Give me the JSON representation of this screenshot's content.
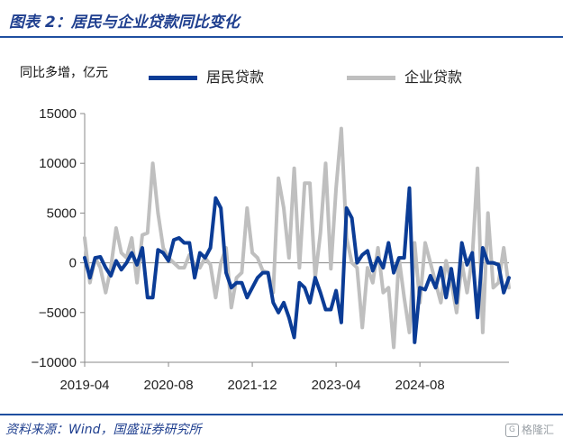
{
  "header": {
    "title": "图表 2：居民与企业贷款同比变化"
  },
  "footer": {
    "source": "资料来源：Wind，国盛证券研究所",
    "watermark": "格隆汇",
    "watermark_icon": "gelonghui-logo-icon"
  },
  "colors": {
    "household": "#0b3c96",
    "corporate": "#bfbfbf",
    "accent": "#1f3f8f"
  },
  "chart_data": {
    "type": "line",
    "ylabel": "同比多增，亿元",
    "ylim": [
      -10000,
      15000
    ],
    "yticks": [
      15000,
      10000,
      5000,
      0,
      -5000,
      -10000
    ],
    "ytick_labels": [
      "15000",
      "10000",
      "5000",
      "0",
      "−5000",
      "−10000"
    ],
    "xtick_labels": [
      "2019-04",
      "2020-08",
      "2021-12",
      "2023-04",
      "2024-08"
    ],
    "xtick_index": [
      0,
      16,
      32,
      48,
      64
    ],
    "grid": false,
    "legend": "top",
    "series": [
      {
        "name": "居民贷款",
        "color": "#0b3c96",
        "values": [
          500,
          -1500,
          500,
          600,
          -500,
          -1300,
          200,
          -700,
          0,
          1000,
          -200,
          1500,
          -3500,
          -3500,
          1300,
          1000,
          200,
          2300,
          2500,
          2000,
          2000,
          -1500,
          1000,
          500,
          1500,
          6500,
          5500,
          -1000,
          -2500,
          -2000,
          -2000,
          -3500,
          -2500,
          -1500,
          -1000,
          -1000,
          -4000,
          -5000,
          -4000,
          -5500,
          -7500,
          -2000,
          -2500,
          -4000,
          -1500,
          -3000,
          -4700,
          -4700,
          -2800,
          -6000,
          5500,
          4500,
          0,
          800,
          1200,
          -800,
          500,
          -500,
          2000,
          -1000,
          500,
          500,
          7500,
          -8000,
          -2500,
          -2700,
          -1300,
          -2500,
          -500,
          -3500,
          -600,
          -4000,
          2000,
          -200,
          1000,
          -5500,
          1500,
          0,
          0,
          -200,
          -3000,
          -1500
        ]
      },
      {
        "name": "企业贷款",
        "color": "#bfbfbf",
        "values": [
          2500,
          -2000,
          500,
          -500,
          -3000,
          -500,
          3500,
          1000,
          500,
          2500,
          -2000,
          2800,
          3000,
          10000,
          5000,
          1500,
          500,
          0,
          -500,
          -500,
          800,
          -200,
          -500,
          500,
          -200,
          -3500,
          0,
          1500,
          -4500,
          -1500,
          -1000,
          5500,
          1000,
          500,
          -800,
          -1000,
          -3000,
          8500,
          5500,
          500,
          9500,
          -500,
          8000,
          8000,
          -1500,
          3000,
          10000,
          -600,
          7500,
          13500,
          2500,
          0,
          -500,
          -6500,
          -500,
          -2000,
          1500,
          -3000,
          -2500,
          -8500,
          500,
          -3500,
          -7000,
          2000,
          -4000,
          2000,
          0,
          -2000,
          -4000,
          200,
          -2000,
          -5000,
          0,
          -3000,
          500,
          9500,
          -7000,
          5000,
          -2500,
          -2000,
          1500,
          -2500
        ]
      }
    ]
  }
}
